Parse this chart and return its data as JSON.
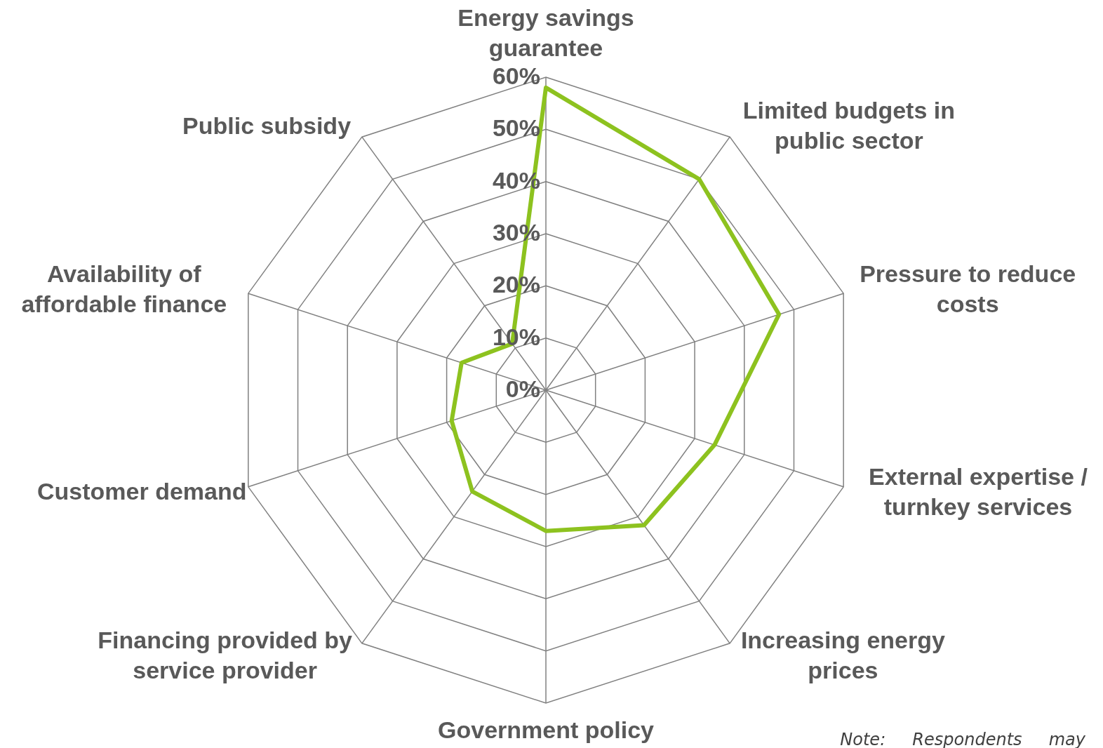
{
  "chart_data": {
    "type": "radar",
    "categories": [
      "Energy savings guarantee",
      "Limited budgets in public sector",
      "Pressure to reduce costs",
      "External expertise / turnkey services",
      "Increasing energy prices",
      "Government policy",
      "Financing provided by service provider",
      "Customer demand",
      "Availability of affordable finance",
      "Public subsidy"
    ],
    "series": [
      {
        "color": "#8dc21f",
        "values": [
          58,
          50,
          47,
          34,
          32,
          27,
          24,
          19,
          17,
          11
        ]
      }
    ],
    "ylim": [
      0,
      60
    ],
    "yticks": [
      {
        "value": 0,
        "label": "0%"
      },
      {
        "value": 10,
        "label": "10%"
      },
      {
        "value": 20,
        "label": "20%"
      },
      {
        "value": 30,
        "label": "30%"
      },
      {
        "value": 40,
        "label": "40%"
      },
      {
        "value": 50,
        "label": "50%"
      },
      {
        "value": 60,
        "label": "60%"
      }
    ],
    "grid": true,
    "annotations": [
      "Note:     Respondents     may"
    ]
  }
}
